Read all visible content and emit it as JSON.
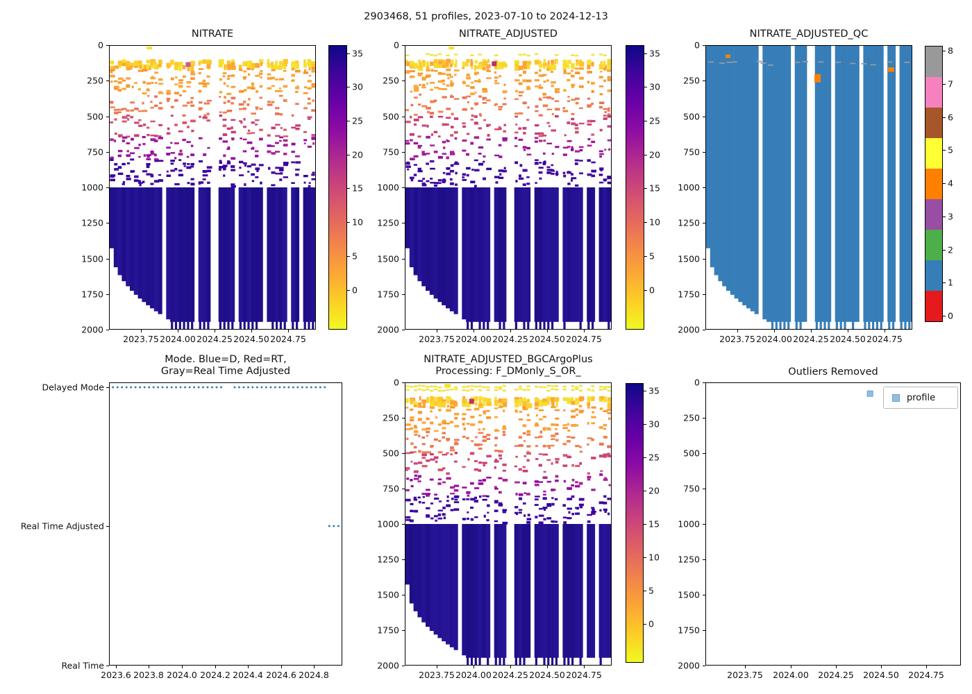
{
  "figure": {
    "suptitle": "2903468, 51 profiles, 2023-07-10 to 2024-12-13",
    "platform_id": "2903468",
    "n_profiles": 51,
    "date_start": "2023-07-10",
    "date_end": "2024-12-13"
  },
  "chart_data": [
    {
      "id": "nitrate",
      "type": "heatmap",
      "title_lines": [
        "NITRATE"
      ],
      "x_tick_labels": [
        "2023.75",
        "2024.00",
        "2024.25",
        "2024.50",
        "2024.75"
      ],
      "x_ticks": [
        2023.75,
        2024.0,
        2024.25,
        2024.5,
        2024.75
      ],
      "x_range": [
        2023.53,
        2024.94
      ],
      "y_ticks": [
        0,
        250,
        500,
        750,
        1000,
        1250,
        1500,
        1750,
        2000
      ],
      "y_range": [
        0,
        2000
      ],
      "y_inverted": true,
      "n_profiles": 51,
      "seed": 7,
      "missing_profile_indices": [
        13,
        21,
        25,
        26,
        31,
        38,
        44,
        47
      ],
      "deep_block": {
        "top_dbar": 1000,
        "colors": [
          "#20108c",
          "#241293",
          "#1e0e88",
          "#261497"
        ]
      },
      "staircase": {
        "first_depth": 1430,
        "full_depth": 1950,
        "n_cols": 15
      },
      "teeth": {
        "from_dbar": 1950,
        "to_dbar": 2000,
        "prob": 0.75
      },
      "bands": [
        {
          "d0": 92,
          "d1": 142,
          "per_col": 3,
          "h": 6.5,
          "colors": [
            "#f4e02a",
            "#fdd22e",
            "#fcc52b",
            "#fca636",
            "#f8e03b"
          ]
        },
        {
          "d0": 150,
          "d1": 335,
          "per_col": 3,
          "h": 3.2,
          "colors": [
            "#fca636",
            "#fba238",
            "#f9952c"
          ]
        },
        {
          "d0": 335,
          "d1": 485,
          "per_col": 2,
          "h": 3.2,
          "colors": [
            "#f2844b",
            "#ee7a52",
            "#e97257"
          ]
        },
        {
          "d0": 485,
          "d1": 635,
          "per_col": 2,
          "h": 3.2,
          "colors": [
            "#d8576b",
            "#cc4778",
            "#c73e73"
          ]
        },
        {
          "d0": 635,
          "d1": 795,
          "per_col": 2,
          "h": 3.2,
          "colors": [
            "#9c179e",
            "#8f0da4",
            "#aa2395"
          ]
        },
        {
          "d0": 795,
          "d1": 985,
          "per_col": 3,
          "h": 3.2,
          "colors": [
            "#46039f",
            "#41049d",
            "#30049c"
          ]
        }
      ],
      "surface_rows": [],
      "special_patches": [
        {
          "frac": 0.18,
          "depth": 6,
          "color": "#f5e126",
          "w": 8,
          "h": 4
        },
        {
          "frac": 0.37,
          "depth": 115,
          "color": "#cf5a8e",
          "w": 7,
          "h": 7
        }
      ],
      "colorbar": {
        "vmin": -5.9,
        "vmax": 36.2,
        "ticks": [
          35,
          30,
          25,
          20,
          15,
          10,
          5,
          0
        ],
        "colormap": "plasma_r"
      },
      "approx_profile_by_depth": [
        {
          "depth_dbar": 100,
          "nitrate": 2
        },
        {
          "depth_dbar": 250,
          "nitrate": 6
        },
        {
          "depth_dbar": 400,
          "nitrate": 10
        },
        {
          "depth_dbar": 550,
          "nitrate": 16
        },
        {
          "depth_dbar": 700,
          "nitrate": 24
        },
        {
          "depth_dbar": 900,
          "nitrate": 30
        },
        {
          "depth_dbar": 1500,
          "nitrate": 35
        }
      ]
    },
    {
      "id": "nitrate_adjusted",
      "type": "heatmap",
      "title_lines": [
        "NITRATE_ADJUSTED"
      ],
      "x_tick_labels": [
        "2023.75",
        "2024.00",
        "2024.25",
        "2024.50",
        "2024.75"
      ],
      "x_ticks": [
        2023.75,
        2024.0,
        2024.25,
        2024.5,
        2024.75
      ],
      "x_range": [
        2023.53,
        2024.94
      ],
      "y_ticks": [
        0,
        250,
        500,
        750,
        1000,
        1250,
        1500,
        1750,
        2000
      ],
      "y_range": [
        0,
        2000
      ],
      "y_inverted": true,
      "n_profiles": 51,
      "seed": 13,
      "missing_profile_indices": [
        13,
        21,
        25,
        26,
        31,
        38,
        44,
        47
      ],
      "deep_block": {
        "top_dbar": 1000,
        "colors": [
          "#20108c",
          "#241293",
          "#1e0e88",
          "#261497"
        ]
      },
      "staircase": {
        "first_depth": 1430,
        "full_depth": 1950,
        "n_cols": 15
      },
      "teeth": {
        "from_dbar": 1950,
        "to_dbar": 2000,
        "prob": 0.75
      },
      "bands": [
        {
          "d0": 92,
          "d1": 142,
          "per_col": 3,
          "h": 6.5,
          "colors": [
            "#f4e02a",
            "#fdd22e",
            "#fcc52b",
            "#fca636",
            "#f8e03b"
          ]
        },
        {
          "d0": 150,
          "d1": 335,
          "per_col": 3,
          "h": 3.2,
          "colors": [
            "#fca636",
            "#fba238",
            "#f9952c"
          ]
        },
        {
          "d0": 335,
          "d1": 485,
          "per_col": 2,
          "h": 3.2,
          "colors": [
            "#f2844b",
            "#ee7a52",
            "#e97257"
          ]
        },
        {
          "d0": 485,
          "d1": 635,
          "per_col": 2,
          "h": 3.2,
          "colors": [
            "#d8576b",
            "#cc4778",
            "#c73e73"
          ]
        },
        {
          "d0": 635,
          "d1": 795,
          "per_col": 2,
          "h": 3.2,
          "colors": [
            "#9c179e",
            "#8f0da4",
            "#aa2395"
          ]
        },
        {
          "d0": 795,
          "d1": 985,
          "per_col": 3,
          "h": 3.2,
          "colors": [
            "#46039f",
            "#41049d",
            "#30049c"
          ]
        }
      ],
      "surface_rows": [
        {
          "depth": 58,
          "cover": 0.5
        }
      ],
      "special_patches": [
        {
          "frac": 0.21,
          "depth": 6,
          "color": "#f5e126",
          "w": 8,
          "h": 4
        },
        {
          "frac": 0.42,
          "depth": 110,
          "color": "#b3326f",
          "w": 7,
          "h": 7
        }
      ],
      "colorbar": {
        "vmin": -5.9,
        "vmax": 36.2,
        "ticks": [
          35,
          30,
          25,
          20,
          15,
          10,
          5,
          0
        ],
        "colormap": "plasma_r"
      }
    },
    {
      "id": "nitrate_adjusted_qc",
      "type": "heatmap_categorical",
      "title_lines": [
        "NITRATE_ADJUSTED_QC"
      ],
      "x_tick_labels": [
        "2023.75",
        "2024.00",
        "2024.25",
        "2024.50",
        "2024.75"
      ],
      "x_ticks": [
        2023.75,
        2024.0,
        2024.25,
        2024.5,
        2024.75
      ],
      "x_range": [
        2023.53,
        2024.94
      ],
      "y_ticks": [
        0,
        250,
        500,
        750,
        1000,
        1250,
        1500,
        1750,
        2000
      ],
      "y_range": [
        0,
        2000
      ],
      "y_inverted": true,
      "n_profiles": 51,
      "seed": 21,
      "missing_profile_indices": [
        13,
        21,
        25,
        26,
        31,
        38,
        44,
        47
      ],
      "base_qc_value": 1,
      "base_color": "#377eb8",
      "staircase": {
        "first_depth": 1430,
        "full_depth": 1950,
        "n_cols": 15
      },
      "teeth": {
        "from_dbar": 1950,
        "to_dbar": 2000,
        "prob": 0.75
      },
      "gray_dashes_qc8": [
        {
          "frac": 0.01,
          "depth": 110
        },
        {
          "frac": 0.065,
          "depth": 118
        },
        {
          "frac": 0.1,
          "depth": 112
        },
        {
          "frac": 0.125,
          "depth": 110
        },
        {
          "frac": 0.245,
          "depth": 106
        },
        {
          "frac": 0.265,
          "depth": 118
        },
        {
          "frac": 0.3,
          "depth": 132
        },
        {
          "frac": 0.43,
          "depth": 112
        },
        {
          "frac": 0.47,
          "depth": 108
        },
        {
          "frac": 0.545,
          "depth": 110
        },
        {
          "frac": 0.63,
          "depth": 112
        },
        {
          "frac": 0.7,
          "depth": 120
        },
        {
          "frac": 0.755,
          "depth": 122
        },
        {
          "frac": 0.8,
          "depth": 130
        },
        {
          "frac": 0.88,
          "depth": 110
        },
        {
          "frac": 0.965,
          "depth": 112
        }
      ],
      "orange_patches_qc4": [
        {
          "frac": 0.095,
          "depth_top": 62,
          "depth_bot": 86,
          "w": 7
        },
        {
          "frac": 0.527,
          "depth_top": 200,
          "depth_bot": 258,
          "w": 9
        },
        {
          "frac": 0.885,
          "depth_top": 152,
          "depth_bot": 184,
          "w": 9
        }
      ],
      "colorbar": {
        "type": "discrete",
        "values": [
          0,
          1,
          2,
          3,
          4,
          5,
          6,
          7,
          8
        ],
        "colors": [
          "#e41a1c",
          "#377eb8",
          "#4daf4a",
          "#984ea3",
          "#ff7f00",
          "#ffff33",
          "#a65628",
          "#f781bf",
          "#999999"
        ]
      }
    },
    {
      "id": "mode",
      "type": "scatter_categorical",
      "title_lines": [
        "Mode. Blue=D, Red=RT,",
        "Gray=Real Time Adjusted"
      ],
      "y_categories": [
        "Delayed Mode",
        "Real Time Adjusted",
        "Real Time"
      ],
      "x_tick_labels": [
        "2023.6",
        "2023.8",
        "2024.0",
        "2024.2",
        "2024.4",
        "2024.6",
        "2024.8"
      ],
      "x_ticks": [
        2023.6,
        2023.8,
        2024.0,
        2024.2,
        2024.4,
        2024.6,
        2024.8
      ],
      "x_range": [
        2023.56,
        2024.97
      ],
      "profile_times": {
        "start": 2023.58,
        "step": 0.0274,
        "count": 51
      },
      "skip_indices": [
        25,
        26
      ],
      "delayed_mode_max_index": 47,
      "real_time_adjusted_indices": [
        48,
        49,
        50
      ],
      "dot_color": "#2878b5"
    },
    {
      "id": "nitrate_adjusted_bgcargoplus",
      "type": "heatmap",
      "title_lines": [
        "NITRATE_ADJUSTED_BGCArgoPlus",
        "Processing: F_DMonly_S_OR_"
      ],
      "x_tick_labels": [
        "2023.75",
        "2024.00",
        "2024.25",
        "2024.50",
        "2024.75"
      ],
      "x_ticks": [
        2023.75,
        2024.0,
        2024.25,
        2024.5,
        2024.75
      ],
      "x_range": [
        2023.53,
        2024.94
      ],
      "y_ticks": [
        0,
        250,
        500,
        750,
        1000,
        1250,
        1500,
        1750,
        2000
      ],
      "y_range": [
        0,
        2000
      ],
      "y_inverted": true,
      "n_profiles": 51,
      "seed": 29,
      "missing_profile_indices": [
        13,
        21,
        25,
        26,
        31,
        38,
        44,
        47
      ],
      "deep_block": {
        "top_dbar": 1000,
        "colors": [
          "#20108c",
          "#241293",
          "#1e0e88",
          "#261497"
        ]
      },
      "staircase": {
        "first_depth": 1430,
        "full_depth": 1950,
        "n_cols": 15
      },
      "teeth": {
        "from_dbar": 1950,
        "to_dbar": 2000,
        "prob": 0.75
      },
      "bands": [
        {
          "d0": 92,
          "d1": 142,
          "per_col": 3,
          "h": 6.5,
          "colors": [
            "#f4e02a",
            "#fdd22e",
            "#fcc52b",
            "#fca636",
            "#f8e03b"
          ]
        },
        {
          "d0": 150,
          "d1": 335,
          "per_col": 3,
          "h": 3.2,
          "colors": [
            "#fca636",
            "#fba238",
            "#f9952c"
          ]
        },
        {
          "d0": 335,
          "d1": 485,
          "per_col": 2,
          "h": 3.2,
          "colors": [
            "#f2844b",
            "#ee7a52",
            "#e97257"
          ]
        },
        {
          "d0": 485,
          "d1": 635,
          "per_col": 2,
          "h": 3.2,
          "colors": [
            "#d8576b",
            "#cc4778",
            "#c73e73"
          ]
        },
        {
          "d0": 635,
          "d1": 795,
          "per_col": 2,
          "h": 3.2,
          "colors": [
            "#9c179e",
            "#8f0da4",
            "#aa2395"
          ]
        },
        {
          "d0": 795,
          "d1": 985,
          "per_col": 3,
          "h": 3.2,
          "colors": [
            "#46039f",
            "#41049d",
            "#30049c"
          ]
        }
      ],
      "surface_rows": [
        {
          "depth": 18,
          "cover": 0.85
        },
        {
          "depth": 42,
          "cover": 0.8
        }
      ],
      "special_patches": [
        {
          "frac": 0.19,
          "depth": 6,
          "color": "#f5e126",
          "w": 9,
          "h": 5
        },
        {
          "frac": 0.31,
          "depth": 112,
          "color": "#c22f67",
          "w": 7,
          "h": 7
        }
      ],
      "colorbar": {
        "vmin": -5.9,
        "vmax": 36.2,
        "ticks": [
          35,
          30,
          25,
          20,
          15,
          10,
          5,
          0
        ],
        "colormap": "plasma_r"
      }
    },
    {
      "id": "outliers_removed",
      "type": "scatter",
      "title_lines": [
        "Outliers Removed"
      ],
      "x_tick_labels": [
        "2023.75",
        "2024.00",
        "2024.25",
        "2024.50",
        "2024.75"
      ],
      "x_ticks": [
        2023.75,
        2024.0,
        2024.25,
        2024.5,
        2024.75
      ],
      "x_range": [
        2023.53,
        2024.94
      ],
      "y_ticks": [
        0,
        250,
        500,
        750,
        1000,
        1250,
        1500,
        1750,
        2000
      ],
      "y_range": [
        0,
        2000
      ],
      "y_inverted": true,
      "points": [
        {
          "x": 2024.44,
          "depth": 75
        }
      ],
      "marker": {
        "shape": "square",
        "fill": "#92bede",
        "edge": "#6ba3cd",
        "size": 8
      },
      "legend": {
        "label": "profile",
        "color": "#92bede"
      }
    }
  ]
}
